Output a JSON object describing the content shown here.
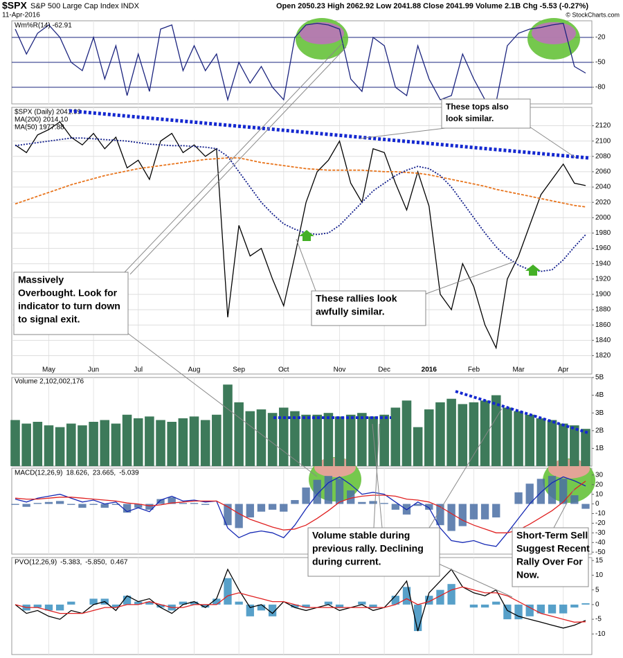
{
  "header": {
    "symbol": "$SPX",
    "name": "S&P 500 Large Cap Index INDX",
    "quote": "Open 2050.23 High 2062.92 Low 2041.88 Close 2041.99 Volume 2.1B Chg -5.53 (-0.27%)",
    "date": "11-Apr-2016",
    "credit": "© StockCharts.com"
  },
  "annotations": [
    {
      "lines": [
        "These tops also",
        "look similar."
      ],
      "color": "#000000"
    },
    {
      "lines": [
        "Massively",
        "Overbought. Look for",
        "indicator to turn down",
        "to signal exit."
      ],
      "color": "#e00000"
    },
    {
      "lines": [
        "These rallies look",
        "awfully similar."
      ],
      "color": "#e00000"
    },
    {
      "lines": [
        "Volume stable during",
        "previous rally. Declining",
        "during current."
      ],
      "color": "#e00000"
    },
    {
      "lines": [
        "Short-Term Sell",
        "Suggest Recent",
        "Rally Over For",
        "Now."
      ],
      "color": "#e00000"
    }
  ],
  "chart_data": [
    {
      "type": "line",
      "legend": "inline",
      "ylim": [
        -100,
        0
      ],
      "yticks": [
        -20,
        -50,
        -80
      ],
      "grid": true,
      "grid_color": "#1a237e",
      "series": [
        {
          "name": "Wm%R(14) -62.91",
          "color": "#1a237e",
          "values": [
            -10,
            -40,
            -15,
            -5,
            -20,
            -50,
            -60,
            -20,
            -70,
            -30,
            -90,
            -40,
            -85,
            -10,
            -5,
            -60,
            -30,
            -60,
            -40,
            -95,
            -50,
            -75,
            -55,
            -80,
            -95,
            -20,
            -5,
            -3,
            -5,
            -10,
            -70,
            -85,
            -20,
            -30,
            -80,
            -90,
            -30,
            -70,
            -95,
            -90,
            -40,
            -70,
            -95,
            -98,
            -30,
            -15,
            -10,
            -8,
            -5,
            -3,
            -55,
            -62.91
          ]
        }
      ]
    },
    {
      "type": "line",
      "legend": "stacked",
      "ylim": [
        1796,
        2144
      ],
      "yticks": [
        1820,
        1840,
        1860,
        1880,
        1900,
        1920,
        1940,
        1960,
        1980,
        2000,
        2020,
        2040,
        2060,
        2080,
        2100,
        2120
      ],
      "grid": true,
      "grid_color": "#dddddd",
      "categories": [
        null,
        null,
        null,
        "May",
        null,
        null,
        null,
        "Jun",
        null,
        null,
        null,
        "Jul",
        null,
        null,
        null,
        null,
        "Aug",
        null,
        null,
        null,
        "Sep",
        null,
        null,
        null,
        "Oct",
        null,
        null,
        null,
        null,
        "Nov",
        null,
        null,
        null,
        "Dec",
        null,
        null,
        null,
        "2016",
        null,
        null,
        null,
        "Feb",
        null,
        null,
        null,
        "Mar",
        null,
        null,
        null,
        "Apr",
        null,
        null
      ],
      "series": [
        {
          "name": "$SPX (Daily) 2041.99",
          "color": "#000000",
          "values": [
            2095,
            2085,
            2108,
            2115,
            2125,
            2105,
            2095,
            2110,
            2090,
            2105,
            2065,
            2075,
            2050,
            2100,
            2110,
            2085,
            2095,
            2080,
            2090,
            1870,
            1990,
            1950,
            1960,
            1920,
            1885,
            1950,
            2020,
            2060,
            2075,
            2100,
            2045,
            2020,
            2090,
            2085,
            2045,
            2010,
            2060,
            2015,
            1900,
            1880,
            1940,
            1910,
            1860,
            1830,
            1920,
            1950,
            1990,
            2030,
            2050,
            2070,
            2045,
            2041.99
          ]
        },
        {
          "name": "MA(200) 2014.10",
          "color": "#e8741c",
          "dash": "dashed",
          "values": [
            2018,
            2023,
            2028,
            2033,
            2038,
            2043,
            2047,
            2051,
            2055,
            2058,
            2061,
            2064,
            2066,
            2068,
            2070,
            2072,
            2074,
            2076,
            2077,
            2078,
            2078,
            2075,
            2072,
            2070,
            2068,
            2066,
            2064,
            2063,
            2062,
            2062,
            2062,
            2062,
            2061,
            2060,
            2060,
            2059,
            2058,
            2056,
            2053,
            2050,
            2047,
            2044,
            2041,
            2037,
            2034,
            2031,
            2028,
            2025,
            2022,
            2019,
            2016,
            2014.1
          ]
        },
        {
          "name": "MA(50) 1977.88",
          "color": "#0d1a8a",
          "dash": "dotted",
          "values": [
            2094,
            2096,
            2098,
            2100,
            2102,
            2104,
            2104,
            2103,
            2102,
            2101,
            2100,
            2098,
            2096,
            2095,
            2094,
            2094,
            2093,
            2092,
            2090,
            2080,
            2060,
            2040,
            2020,
            2005,
            1992,
            1985,
            1980,
            1978,
            1980,
            1990,
            2005,
            2020,
            2035,
            2045,
            2055,
            2062,
            2067,
            2064,
            2055,
            2040,
            2020,
            2000,
            1980,
            1962,
            1948,
            1938,
            1932,
            1930,
            1932,
            1945,
            1962,
            1977.88
          ]
        }
      ]
    },
    {
      "type": "bar",
      "title": "Volume 2,102,002,176",
      "color": "#3d7a5a",
      "ylim": [
        0,
        5
      ],
      "yticks": [
        {
          "value": 1,
          "label": "1B"
        },
        {
          "value": 2,
          "label": "2B"
        },
        {
          "value": 3,
          "label": "3B"
        },
        {
          "value": 4,
          "label": "4B"
        },
        {
          "value": 5,
          "label": "5B"
        }
      ],
      "grid": false,
      "values": [
        2.6,
        2.4,
        2.5,
        2.3,
        2.2,
        2.4,
        2.3,
        2.5,
        2.6,
        2.4,
        2.9,
        2.7,
        2.8,
        2.6,
        2.5,
        2.7,
        2.8,
        2.6,
        2.9,
        4.6,
        3.6,
        3.1,
        3.2,
        3.0,
        3.3,
        3.1,
        2.9,
        2.9,
        3.0,
        2.8,
        2.9,
        3.0,
        2.8,
        2.9,
        3.3,
        3.7,
        2.2,
        3.2,
        3.6,
        3.8,
        3.5,
        3.6,
        3.7,
        4.0,
        3.3,
        3.1,
        2.9,
        2.7,
        2.6,
        2.4,
        2.3,
        2.102002176
      ]
    },
    {
      "type": "line",
      "legend": "inline",
      "label": "MACD(12,26,9)",
      "ylim": [
        -52,
        37
      ],
      "yticks": [
        -50,
        -40,
        -30,
        -20,
        -10,
        0,
        10,
        20,
        30
      ],
      "grid": false,
      "series": [
        {
          "name": "-5.039",
          "color": "#4a6fa5",
          "style": "histogram",
          "values": [
            -1,
            -3,
            1,
            2,
            3,
            -1,
            -4,
            -1,
            -4,
            -1,
            -9,
            -4,
            -6,
            5,
            7,
            1,
            1,
            -1,
            0,
            -22,
            -25,
            -14,
            -8,
            -6,
            -8,
            4,
            17,
            25,
            29,
            26,
            14,
            2,
            3,
            1,
            -6,
            -11,
            -2,
            -6,
            -22,
            -28,
            -23,
            -16,
            -16,
            -14,
            0,
            12,
            21,
            26,
            29,
            26,
            9,
            -5.039
          ]
        },
        {
          "name": "18.626,",
          "color": "#1428b4",
          "values": [
            5,
            2,
            6,
            8,
            10,
            6,
            2,
            4,
            0,
            2,
            -8,
            -4,
            -8,
            4,
            8,
            3,
            4,
            2,
            3,
            -25,
            -35,
            -30,
            -28,
            -30,
            -35,
            -22,
            -5,
            10,
            22,
            28,
            20,
            10,
            12,
            10,
            2,
            -6,
            2,
            -4,
            -25,
            -38,
            -40,
            -38,
            -42,
            -44,
            -30,
            -15,
            0,
            12,
            22,
            28,
            24,
            18.626
          ]
        },
        {
          "name": "23.665,",
          "color": "#e02020",
          "values": [
            6,
            5,
            5,
            6,
            7,
            7,
            6,
            5,
            4,
            3,
            1,
            0,
            -2,
            -1,
            1,
            2,
            3,
            3,
            3,
            -3,
            -10,
            -16,
            -20,
            -24,
            -27,
            -26,
            -22,
            -15,
            -7,
            2,
            6,
            8,
            9,
            9,
            8,
            5,
            4,
            2,
            -3,
            -10,
            -17,
            -22,
            -26,
            -30,
            -30,
            -27,
            -21,
            -14,
            -7,
            2,
            15,
            23.665
          ]
        }
      ]
    },
    {
      "type": "line",
      "legend": "inline",
      "label": "PVO(12,26,9)",
      "ylim": [
        -17,
        16
      ],
      "yticks": [
        -10,
        -5,
        0,
        5,
        10,
        15
      ],
      "grid": false,
      "series": [
        {
          "name": "0.467",
          "color": "#3a8fc0",
          "style": "histogram",
          "values": [
            0,
            -2,
            -1,
            -2,
            -2,
            1,
            0,
            2,
            2,
            -1,
            3,
            1,
            1,
            -1,
            -2,
            1,
            1,
            -1,
            2,
            9,
            1,
            -4,
            -2,
            -4,
            0,
            -1,
            -1,
            0,
            1,
            -1,
            0,
            1,
            -1,
            0,
            3,
            6,
            -9,
            3,
            5,
            7,
            0,
            -1,
            -1,
            1,
            -5,
            -5,
            -4,
            -3,
            -3,
            -3,
            -1,
            0.467
          ]
        },
        {
          "name": "-5.383,",
          "color": "#000000",
          "values": [
            0,
            -3,
            -2,
            -4,
            -5,
            -2,
            -3,
            0,
            1,
            -2,
            3,
            1,
            2,
            -1,
            -3,
            0,
            1,
            -1,
            2,
            12,
            5,
            -1,
            0,
            -3,
            1,
            -1,
            -2,
            -1,
            0,
            -2,
            -1,
            0,
            -2,
            -1,
            3,
            8,
            -9,
            4,
            8,
            12,
            6,
            4,
            3,
            5,
            -2,
            -4,
            -5,
            -6,
            -7,
            -8,
            -7,
            -5.383
          ]
        },
        {
          "name": "-5.850,",
          "color": "#e02020",
          "values": [
            0,
            -1,
            -1,
            -2,
            -3,
            -3,
            -3,
            -2,
            -1,
            -1,
            0,
            0,
            1,
            0,
            -1,
            -1,
            0,
            0,
            0,
            3,
            4,
            3,
            2,
            1,
            1,
            0,
            -1,
            -1,
            -1,
            -1,
            -1,
            -1,
            -1,
            -1,
            0,
            2,
            0,
            1,
            3,
            5,
            6,
            5,
            4,
            4,
            3,
            1,
            -1,
            -3,
            -4,
            -5,
            -6,
            -5.85
          ]
        }
      ]
    }
  ]
}
